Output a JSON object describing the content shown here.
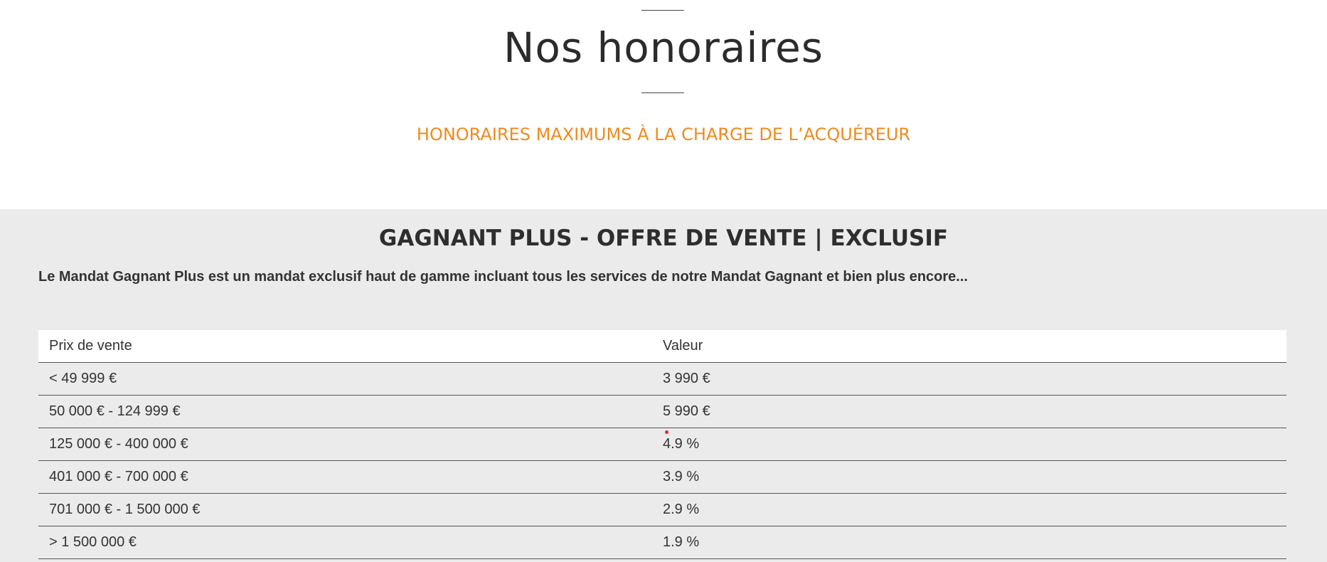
{
  "header": {
    "title": "Nos honoraires",
    "subtitle": "HONORAIRES MAXIMUMS À LA CHARGE DE L’ACQUÉREUR"
  },
  "offer": {
    "title": "GAGNANT PLUS - OFFRE DE VENTE | EXCLUSIF",
    "description": "Le Mandat Gagnant Plus est un mandat exclusif haut de gamme incluant tous les services de notre Mandat Gagnant et bien plus encore..."
  },
  "fee_table": {
    "columns": [
      "Prix de vente",
      "Valeur"
    ],
    "rows": [
      [
        "< 49 999 €",
        "3 990 €"
      ],
      [
        "50 000 € - 124 999 €",
        "5 990 €"
      ],
      [
        "125 000 € - 400 000 €",
        "4.9 %"
      ],
      [
        "401 000 € - 700 000 €",
        "3.9 %"
      ],
      [
        "701 000 € - 1 500 000 €",
        "2.9 %"
      ],
      [
        "> 1 500 000 €",
        "1.9 %"
      ]
    ]
  },
  "colors": {
    "accent": "#f08a1c",
    "section_background": "#ebebeb",
    "text": "#333333",
    "marker": "#e8232a"
  }
}
